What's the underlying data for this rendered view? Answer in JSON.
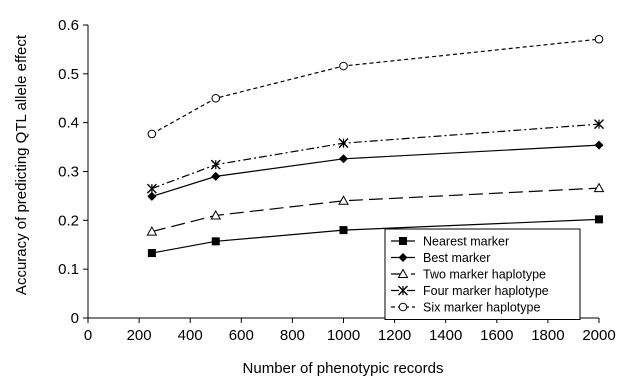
{
  "chart_data": {
    "type": "line",
    "xlabel": "Number of phenotypic records",
    "ylabel": "Accuracy of predicting QTL allele effect",
    "xlim": [
      0,
      2000
    ],
    "ylim": [
      0,
      0.6
    ],
    "x_ticks": [
      0,
      200,
      400,
      600,
      800,
      1000,
      1200,
      1400,
      1600,
      1800,
      2000
    ],
    "y_ticks": [
      0,
      0.1,
      0.2,
      0.3,
      0.4,
      0.5,
      0.6
    ],
    "x_tick_labels": [
      "0",
      "200",
      "400",
      "600",
      "800",
      "1000",
      "1200",
      "1400",
      "1600",
      "1800",
      "2000"
    ],
    "y_tick_labels": [
      "0",
      "0.1",
      "0.2",
      "0.3",
      "0.4",
      "0.5",
      "0.6"
    ],
    "x": [
      250,
      500,
      1000,
      2000
    ],
    "grid": false,
    "legend_position": "bottom-right",
    "series": [
      {
        "name": "Nearest marker",
        "values": [
          0.133,
          0.157,
          0.18,
          0.202
        ],
        "marker": "filled-square",
        "dash": "solid",
        "color": "#000000"
      },
      {
        "name": "Best marker",
        "values": [
          0.249,
          0.29,
          0.326,
          0.354
        ],
        "marker": "filled-diamond",
        "dash": "solid",
        "color": "#000000"
      },
      {
        "name": "Two marker haplotype",
        "values": [
          0.177,
          0.21,
          0.24,
          0.266
        ],
        "marker": "open-triangle",
        "dash": "long-dash",
        "color": "#000000"
      },
      {
        "name": "Four marker haplotype",
        "values": [
          0.265,
          0.314,
          0.358,
          0.397
        ],
        "marker": "star",
        "dash": "dash-dot",
        "color": "#000000"
      },
      {
        "name": "Six marker haplotype",
        "values": [
          0.377,
          0.45,
          0.516,
          0.571
        ],
        "marker": "open-circle",
        "dash": "short-dash",
        "color": "#000000"
      }
    ]
  }
}
